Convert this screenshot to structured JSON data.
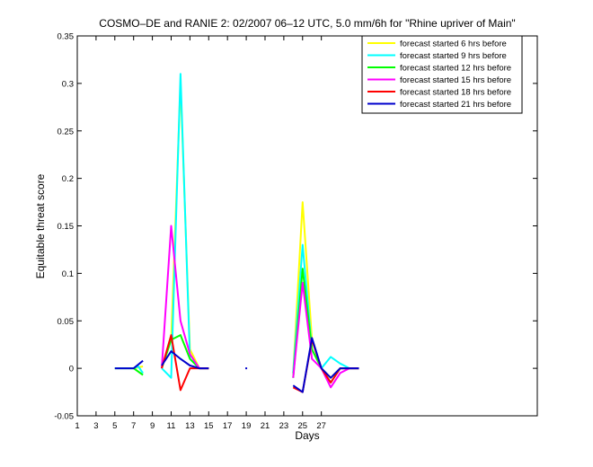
{
  "chart_data": {
    "type": "line",
    "title": "COSMO–DE and RANIE 2: 02/2007 06–12 UTC, 5.0 mm/6h for \"Rhine upriver of Main\"",
    "xlabel": "Days",
    "ylabel": "Equitable threat score",
    "xlim": [
      1,
      50
    ],
    "ylim": [
      -0.05,
      0.35
    ],
    "xticks": [
      1,
      3,
      5,
      7,
      9,
      11,
      13,
      15,
      17,
      19,
      21,
      23,
      25,
      27
    ],
    "yticks": [
      -0.05,
      0,
      0.05,
      0.1,
      0.15,
      0.2,
      0.25,
      0.3,
      0.35
    ],
    "ytick_labels": [
      "-0.05",
      "0",
      "0.05",
      "0.1",
      "0.15",
      "0.2",
      "0.25",
      "0.3",
      "0.35"
    ],
    "grid": false,
    "legend_position": "top-right",
    "series": [
      {
        "name": "forecast started 6 hrs before",
        "color": "#ffff00",
        "points": [
          [
            5,
            0
          ],
          [
            6,
            0
          ],
          [
            7,
            0
          ],
          [
            8,
            0.002
          ],
          null,
          [
            10,
            0
          ],
          [
            11,
            0.03
          ],
          [
            12,
            0.3
          ],
          [
            13,
            0.02
          ],
          [
            14,
            0
          ],
          [
            15,
            0
          ],
          null,
          [
            24,
            -0.005
          ],
          [
            25,
            0.175
          ],
          [
            26,
            0.03
          ],
          [
            27,
            0
          ],
          [
            28,
            -0.01
          ],
          [
            29,
            0
          ],
          [
            30,
            0
          ],
          [
            31,
            0
          ]
        ]
      },
      {
        "name": "forecast started 9 hrs before",
        "color": "#00ffff",
        "points": [
          [
            5,
            0
          ],
          [
            6,
            0
          ],
          [
            7,
            0
          ],
          [
            7.5,
            0.002
          ],
          [
            8,
            -0.005
          ],
          null,
          [
            10,
            0
          ],
          [
            11,
            -0.01
          ],
          [
            12,
            0.31
          ],
          [
            13,
            0.01
          ],
          [
            14,
            0
          ],
          [
            15,
            0
          ],
          null,
          [
            24,
            -0.005
          ],
          [
            25,
            0.13
          ],
          [
            26,
            0.02
          ],
          [
            27,
            0
          ],
          [
            28,
            0.012
          ],
          [
            29,
            0.005
          ],
          [
            30,
            0
          ],
          [
            31,
            0
          ]
        ]
      },
      {
        "name": "forecast started 12 hrs before",
        "color": "#00ff00",
        "points": [
          [
            7,
            0
          ],
          [
            8,
            -0.007
          ],
          null,
          [
            10,
            0
          ],
          [
            11,
            0.03
          ],
          [
            12,
            0.035
          ],
          [
            13,
            0.01
          ],
          [
            14,
            0
          ],
          [
            15,
            0
          ],
          null,
          [
            24,
            -0.01
          ],
          [
            25,
            0.105
          ],
          [
            26,
            0.02
          ],
          [
            27,
            0
          ],
          [
            28,
            -0.015
          ],
          [
            29,
            0
          ],
          [
            30,
            0
          ],
          [
            31,
            0
          ]
        ]
      },
      {
        "name": "forecast started 15 hrs before",
        "color": "#ff00ff",
        "points": [
          [
            10,
            0
          ],
          [
            11,
            0.15
          ],
          [
            12,
            0.05
          ],
          [
            13,
            0.015
          ],
          [
            14,
            0
          ],
          [
            15,
            0
          ],
          null,
          [
            24,
            -0.01
          ],
          [
            25,
            0.09
          ],
          [
            26,
            0.01
          ],
          [
            27,
            0
          ],
          [
            28,
            -0.02
          ],
          [
            29,
            -0.005
          ],
          [
            30,
            0
          ],
          [
            31,
            0
          ]
        ]
      },
      {
        "name": "forecast started 18 hrs before",
        "color": "#ff0000",
        "points": [
          [
            10,
            0
          ],
          [
            11,
            0.035
          ],
          [
            12,
            -0.023
          ],
          [
            13,
            0
          ],
          [
            14,
            0
          ],
          [
            15,
            0
          ],
          null,
          [
            24,
            -0.02
          ],
          [
            25,
            -0.025
          ],
          [
            26,
            0.03
          ],
          [
            27,
            0
          ],
          [
            28,
            -0.015
          ],
          [
            29,
            0
          ],
          [
            30,
            0
          ],
          [
            31,
            0
          ]
        ]
      },
      {
        "name": "forecast started 21 hrs before",
        "color": "#0000cc",
        "points": [
          [
            5,
            0
          ],
          [
            6,
            0
          ],
          [
            7,
            0
          ],
          [
            8,
            0.008
          ],
          null,
          [
            10,
            0.003
          ],
          [
            11,
            0.018
          ],
          [
            12,
            0.01
          ],
          [
            13,
            0.003
          ],
          [
            14,
            0
          ],
          [
            15,
            0
          ],
          null,
          [
            19,
            0
          ],
          null,
          [
            24,
            -0.018
          ],
          [
            25,
            -0.025
          ],
          [
            26,
            0.032
          ],
          [
            27,
            0
          ],
          [
            28,
            -0.01
          ],
          [
            29,
            0
          ],
          [
            30,
            0
          ],
          [
            31,
            0
          ]
        ]
      }
    ]
  }
}
